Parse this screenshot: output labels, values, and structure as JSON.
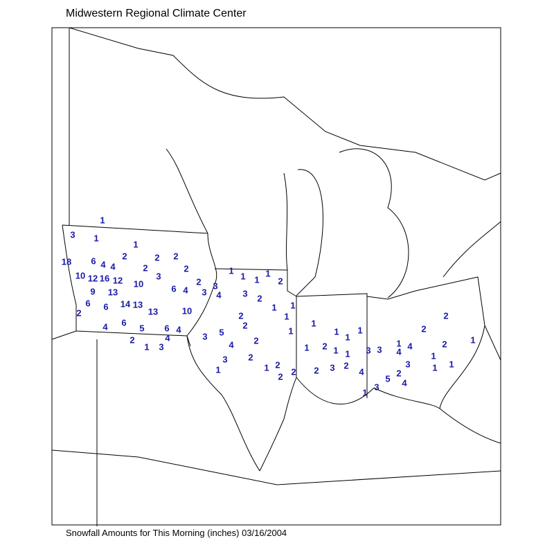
{
  "title": "Midwestern Regional Climate Center",
  "footer": "Snowfall Amounts for This Morning (inches) 03/16/2004",
  "label_color": "#1a1aa6",
  "snowfall": [
    1,
    3,
    1,
    1,
    18,
    6,
    4,
    4,
    2,
    2,
    2,
    2,
    2,
    10,
    12,
    16,
    12,
    10,
    3,
    6,
    4,
    2,
    3,
    3,
    4,
    9,
    13,
    6,
    6,
    14,
    13,
    13,
    10,
    2,
    4,
    6,
    5,
    6,
    4,
    4,
    2,
    1,
    3,
    1,
    1,
    1,
    1,
    2,
    3,
    2,
    1,
    1,
    1,
    2,
    2,
    1,
    3,
    5,
    4,
    2,
    3,
    2,
    1,
    1,
    2,
    2,
    2,
    1,
    1,
    1,
    1,
    1,
    2,
    1,
    1,
    3,
    3,
    2,
    3,
    2,
    4,
    1,
    3,
    5,
    2,
    4,
    3,
    1,
    4,
    4,
    2,
    2,
    2,
    1,
    1,
    1,
    1
  ]
}
